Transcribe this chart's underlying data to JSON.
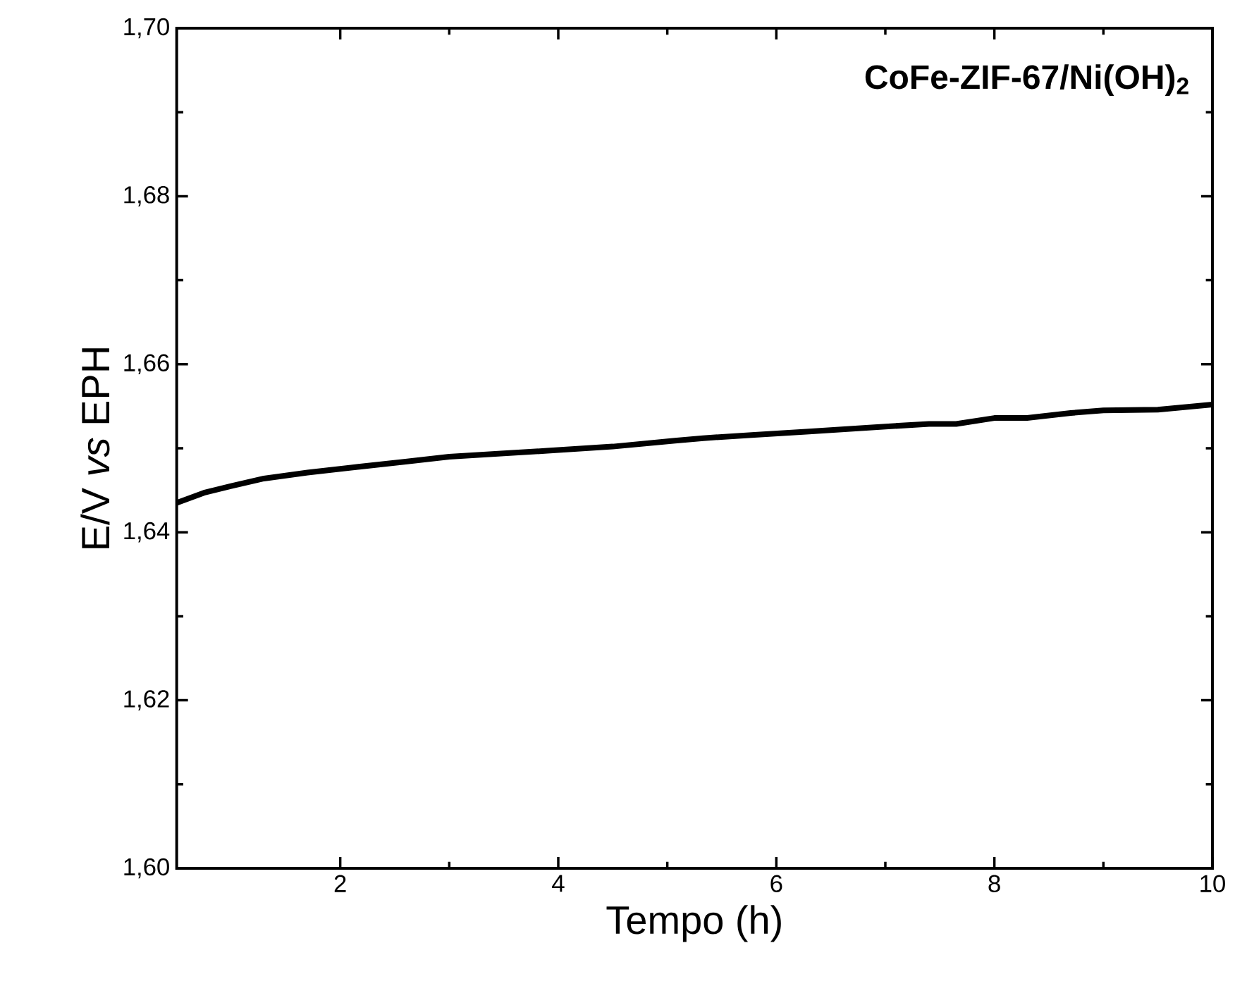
{
  "chart_data": {
    "type": "line",
    "xlabel": "Tempo (h)",
    "ylabel": "E/V *vs* EPH",
    "annotations": [
      "**CoFe-ZIF-67/Ni(OH)$_{2}$**"
    ],
    "x": [
      0.5,
      0.75,
      1.0,
      1.3,
      1.7,
      2.1,
      2.6,
      3.0,
      3.5,
      3.9,
      4.5,
      5.07,
      5.33,
      5.8,
      6.3,
      6.9,
      7.4,
      7.65,
      8.0,
      8.3,
      8.7,
      9.0,
      9.5,
      10.0
    ],
    "series": [
      {
        "color": "#000000",
        "values": [
          1.6435,
          1.6447,
          1.6455,
          1.6464,
          1.6471,
          1.6477,
          1.6484,
          1.649,
          1.6494,
          1.6497,
          1.6502,
          1.6509,
          1.6512,
          1.6516,
          1.652,
          1.6525,
          1.6529,
          1.6529,
          1.6536,
          1.6536,
          1.6542,
          1.6545,
          1.6546,
          1.6552
        ]
      }
    ],
    "xlim": [
      0.5,
      10
    ],
    "ylim": [
      1.6,
      1.7
    ],
    "xticks": [
      2,
      4,
      6,
      8,
      10
    ],
    "yticks": [
      {
        "value": 1.6,
        "label": "1,60"
      },
      {
        "value": 1.62,
        "label": "1,62"
      },
      {
        "value": 1.64,
        "label": "1,64"
      },
      {
        "value": 1.66,
        "label": "1,66"
      },
      {
        "value": 1.68,
        "label": "1,68"
      },
      {
        "value": 1.7,
        "label": "1,70"
      }
    ],
    "grid": false,
    "marker": "none",
    "line_style": "solid"
  }
}
